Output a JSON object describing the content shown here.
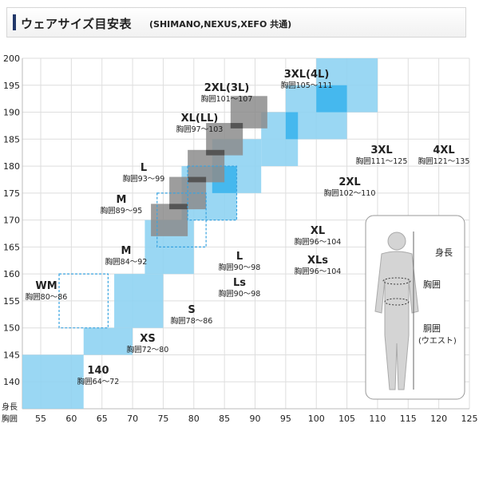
{
  "header": {
    "title": "ウェアサイズ目安表",
    "subtitle": "(SHIMANO,NEXUS,XEFO 共通)"
  },
  "chart_data": {
    "type": "heatmap",
    "description_axes": "box chart: x = chest girth (cm), y = height (cm)",
    "x_axis": {
      "label": "胸囲",
      "ticks": [
        55,
        60,
        65,
        70,
        75,
        80,
        85,
        90,
        95,
        100,
        105,
        110,
        115,
        120,
        125
      ],
      "range": [
        52,
        125
      ]
    },
    "y_axis": {
      "label": "身長",
      "ticks": [
        140,
        145,
        150,
        155,
        160,
        165,
        170,
        175,
        180,
        185,
        190,
        195,
        200
      ],
      "range": [
        135,
        200
      ]
    },
    "grid": true,
    "series": [
      {
        "name": "standard",
        "style": "blue-fill",
        "sizes": [
          {
            "size": "140",
            "chest": "胸囲64〜72",
            "x": [
              52,
              62
            ],
            "y": [
              135,
              145
            ]
          },
          {
            "size": "XS",
            "chest": "胸囲72〜80",
            "x": [
              62,
              70
            ],
            "y": [
              145,
              150
            ]
          },
          {
            "size": "S",
            "chest": "胸囲78〜86",
            "x": [
              67,
              75
            ],
            "y": [
              150,
              160
            ]
          },
          {
            "size": "M",
            "chest": "胸囲84〜92",
            "x": [
              72,
              80
            ],
            "y": [
              160,
              170
            ]
          },
          {
            "size": "L",
            "chest": "胸囲90〜98",
            "x": [
              78,
              87
            ],
            "y": [
              170,
              180
            ]
          },
          {
            "size": "XL",
            "chest": "胸囲96〜104",
            "x": [
              83,
              91
            ],
            "y": [
              175,
              185
            ]
          },
          {
            "size": "2XL",
            "chest": "胸囲102〜110",
            "x": [
              91,
              97
            ],
            "y": [
              180,
              190
            ]
          },
          {
            "size": "3XL",
            "chest": "胸囲111〜125",
            "x": [
              95,
              105
            ],
            "y": [
              185,
              195
            ]
          },
          {
            "size": "4XL",
            "chest": "胸囲121〜135",
            "x": [
              100,
              110
            ],
            "y": [
              190,
              200
            ]
          }
        ]
      },
      {
        "name": "asian",
        "style": "gray-fill",
        "sizes": [
          {
            "size": "M",
            "chest": "胸囲89〜95",
            "x": [
              73,
              79
            ],
            "y": [
              167,
              173
            ]
          },
          {
            "size": "L",
            "chest": "胸囲93〜99",
            "x": [
              76,
              82
            ],
            "y": [
              172,
              178
            ]
          },
          {
            "size": "XL(LL)",
            "chest": "胸囲97〜103",
            "x": [
              79,
              85
            ],
            "y": [
              177,
              183
            ]
          },
          {
            "size": "2XL(3L)",
            "chest": "胸囲101〜107",
            "x": [
              82,
              88
            ],
            "y": [
              182,
              188
            ]
          },
          {
            "size": "3XL(4L)",
            "chest": "胸囲105〜111",
            "x": [
              86,
              92
            ],
            "y": [
              187,
              193
            ]
          }
        ]
      },
      {
        "name": "slim",
        "style": "dashed-outline",
        "sizes": [
          {
            "size": "WM",
            "chest": "胸囲80〜86",
            "x": [
              58,
              66
            ],
            "y": [
              150,
              160
            ]
          },
          {
            "size": "Ls",
            "chest": "胸囲90〜98",
            "x": [
              74,
              82
            ],
            "y": [
              165,
              175
            ]
          },
          {
            "size": "XLs",
            "chest": "胸囲96〜104",
            "x": [
              79,
              87
            ],
            "y": [
              170,
              180
            ]
          }
        ]
      }
    ],
    "annotations": [
      {
        "text": "140",
        "sub": "胸囲64〜72"
      },
      {
        "text": "XS",
        "sub": "胸囲72〜80"
      },
      {
        "text": "S",
        "sub": "胸囲78〜86"
      },
      {
        "text": "WM",
        "sub": "胸囲80〜86"
      },
      {
        "text": "M",
        "sub": "胸囲84〜92"
      },
      {
        "text": "M",
        "sub": "胸囲89〜95"
      },
      {
        "text": "L",
        "sub": "胸囲93〜99"
      },
      {
        "text": "L",
        "sub": "胸囲90〜98"
      },
      {
        "text": "Ls",
        "sub": "胸囲90〜98"
      },
      {
        "text": "XL(LL)",
        "sub": "胸囲97〜103"
      },
      {
        "text": "2XL(3L)",
        "sub": "胸囲101〜107"
      },
      {
        "text": "3XL(4L)",
        "sub": "胸囲105〜111"
      },
      {
        "text": "XL",
        "sub": "胸囲96〜104"
      },
      {
        "text": "XLs",
        "sub": "胸囲96〜104"
      },
      {
        "text": "2XL",
        "sub": "胸囲102〜110"
      },
      {
        "text": "3XL",
        "sub": "胸囲111〜125"
      },
      {
        "text": "4XL",
        "sub": "胸囲121〜135"
      }
    ],
    "figure_labels": [
      "身長",
      "胸囲",
      "胴囲",
      "(ウエスト)"
    ],
    "colors": {
      "blue": "#8fd3f2",
      "blue_overlap": "#45b8ee",
      "gray": "#8c8c8c",
      "gray_overlap": "#555555",
      "dashed": "#39a3e0"
    }
  }
}
